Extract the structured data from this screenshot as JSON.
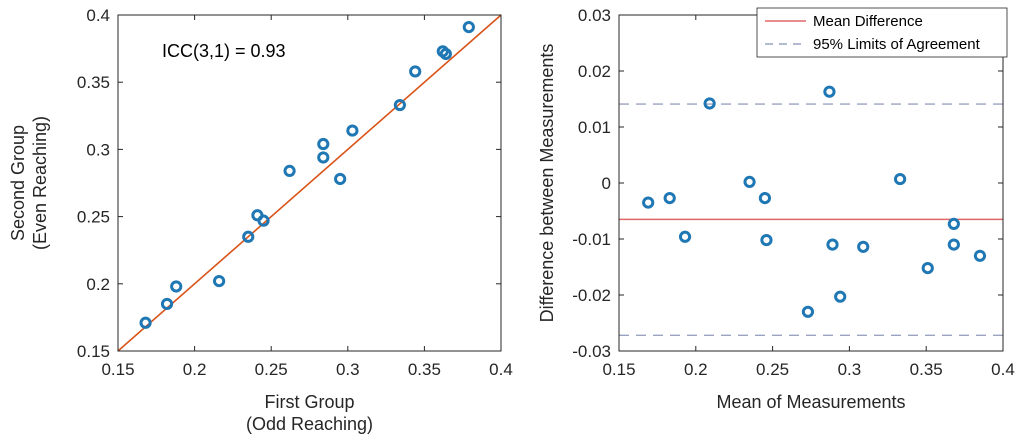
{
  "chart_data": [
    {
      "type": "scatter",
      "title": "",
      "xlabel": [
        "First Group",
        "(Odd Reaching)"
      ],
      "ylabel": [
        "Second Group",
        "(Even Reaching)"
      ],
      "xlim": [
        0.15,
        0.4
      ],
      "ylim": [
        0.15,
        0.4
      ],
      "xticks": [
        "0.15",
        "0.2",
        "0.25",
        "0.3",
        "0.35",
        "0.4"
      ],
      "yticks": [
        "0.15",
        "0.2",
        "0.25",
        "0.3",
        "0.35",
        "0.4"
      ],
      "annotation": "ICC(3,1) = 0.93",
      "identity_line": {
        "from": [
          0.15,
          0.15
        ],
        "to": [
          0.4,
          0.4
        ],
        "color": "#d95319"
      },
      "marker_color": "#1f77b4",
      "series": [
        {
          "points": [
            [
              0.168,
              0.171
            ],
            [
              0.182,
              0.185
            ],
            [
              0.188,
              0.198
            ],
            [
              0.216,
              0.202
            ],
            [
              0.235,
              0.235
            ],
            [
              0.241,
              0.251
            ],
            [
              0.245,
              0.247
            ],
            [
              0.262,
              0.284
            ],
            [
              0.284,
              0.304
            ],
            [
              0.284,
              0.294
            ],
            [
              0.295,
              0.278
            ],
            [
              0.303,
              0.314
            ],
            [
              0.334,
              0.333
            ],
            [
              0.344,
              0.358
            ],
            [
              0.362,
              0.373
            ],
            [
              0.364,
              0.371
            ],
            [
              0.379,
              0.391
            ]
          ]
        }
      ],
      "grid": false
    },
    {
      "type": "scatter",
      "title": "",
      "xlabel": [
        "Mean of Measurements"
      ],
      "ylabel": [
        "Difference between Measurements"
      ],
      "xlim": [
        0.15,
        0.4
      ],
      "ylim": [
        -0.03,
        0.03
      ],
      "xticks": [
        "0.15",
        "0.2",
        "0.25",
        "0.3",
        "0.35",
        "0.4"
      ],
      "yticks": [
        "-0.03",
        "-0.02",
        "-0.01",
        "0",
        "0.01",
        "0.02",
        "0.03"
      ],
      "mean_difference": -0.0065,
      "limits_of_agreement": [
        -0.0272,
        0.0141
      ],
      "mean_line_color": "#e06666",
      "loa_line_color": "#9aa3bf",
      "marker_color": "#1f77b4",
      "legend": {
        "placement": "top-right",
        "entries": [
          {
            "label": "Mean Difference",
            "style": "solid",
            "color": "#e06666"
          },
          {
            "label": "95% Limits of Agreement",
            "style": "dashed",
            "color": "#9aa3bf"
          }
        ]
      },
      "series": [
        {
          "points": [
            [
              0.169,
              -0.0035
            ],
            [
              0.183,
              -0.0027
            ],
            [
              0.193,
              -0.0096
            ],
            [
              0.209,
              0.0142
            ],
            [
              0.235,
              0.0002
            ],
            [
              0.245,
              -0.0027
            ],
            [
              0.246,
              -0.0102
            ],
            [
              0.273,
              -0.023
            ],
            [
              0.287,
              0.0163
            ],
            [
              0.289,
              -0.011
            ],
            [
              0.294,
              -0.0203
            ],
            [
              0.309,
              -0.0114
            ],
            [
              0.333,
              0.0007
            ],
            [
              0.351,
              -0.0152
            ],
            [
              0.368,
              -0.0073
            ],
            [
              0.368,
              -0.011
            ],
            [
              0.385,
              -0.013
            ]
          ]
        }
      ],
      "grid": false
    }
  ]
}
